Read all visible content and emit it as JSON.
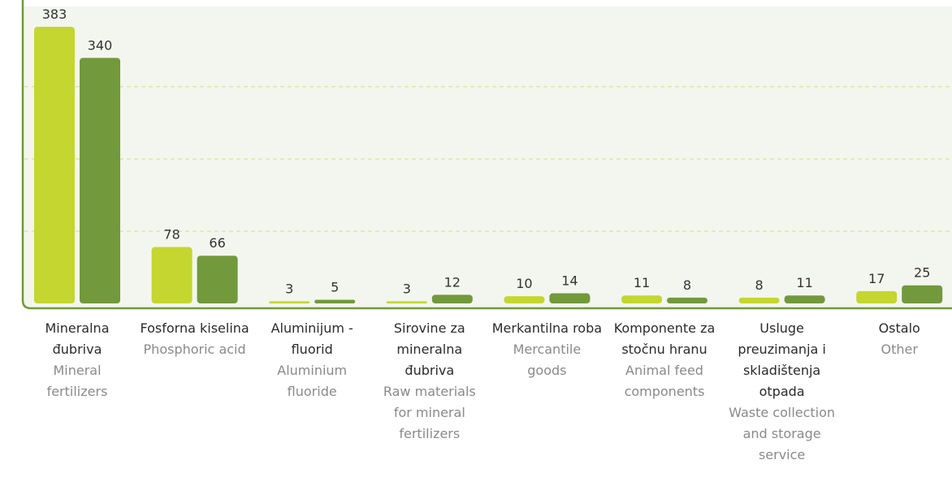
{
  "chart_data": {
    "type": "bar",
    "categories": [
      "Mineralna đubriva",
      "Fosforna kiselina",
      "Aluminijum - fluorid",
      "Sirovine za mineralna đubriva",
      "Merkantilna roba",
      "Komponente za stočnu hranu",
      "Usluge preuzimanja i skladištenja otpada",
      "Ostalo"
    ],
    "category_translations": [
      "Mineral fertilizers",
      "Phosphoric acid",
      "Aluminium fluoride",
      "Raw materials for mineral fertilizers",
      "Mercantile goods",
      "Animal feed components",
      "Waste collection and storage service",
      "Other"
    ],
    "series": [
      {
        "color": "#c4d62f",
        "values": [
          383,
          78,
          3,
          3,
          10,
          11,
          8,
          17
        ]
      },
      {
        "color": "#72993b",
        "values": [
          340,
          66,
          5,
          12,
          14,
          8,
          11,
          25
        ]
      }
    ],
    "ylim": [
      0,
      410
    ],
    "yticks": [
      100,
      200,
      300
    ],
    "grid": true
  }
}
